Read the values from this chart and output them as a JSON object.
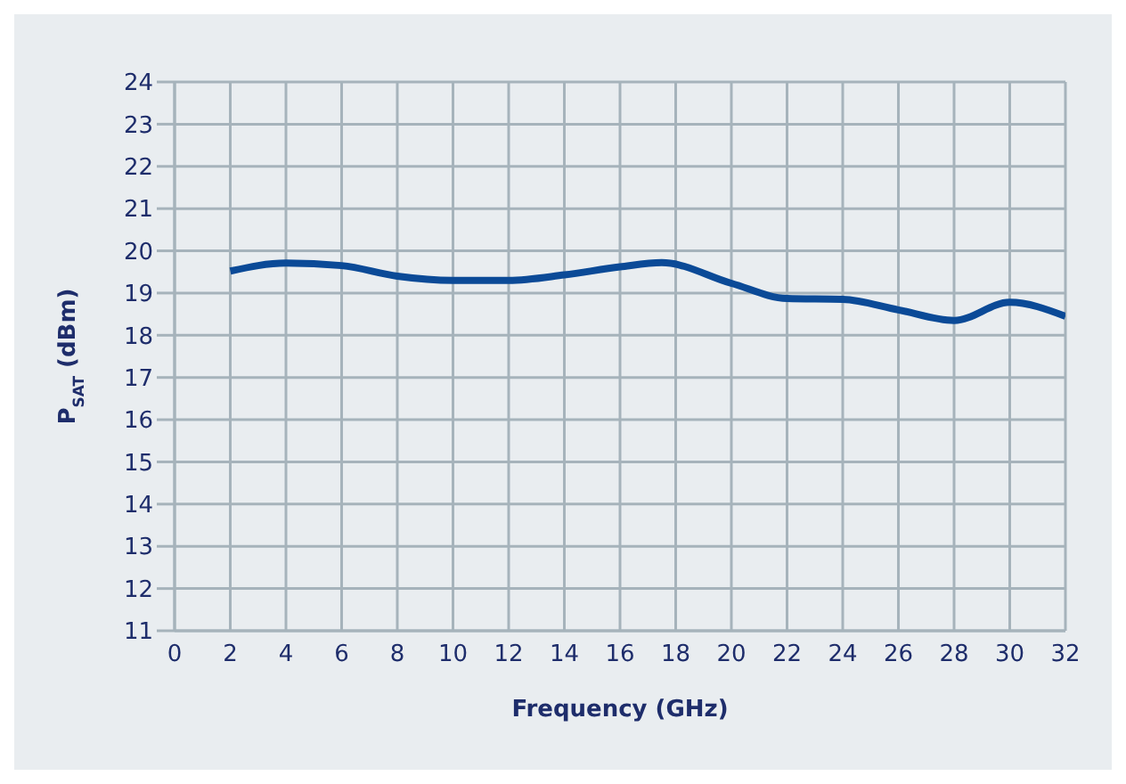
{
  "chart_data": {
    "type": "line",
    "xlabel": "Frequency (GHz)",
    "ylabel": "P$_{SAT}$ (dBm)",
    "x": [
      2,
      4,
      6,
      8,
      10,
      12,
      14,
      16,
      17.5,
      20,
      22,
      24,
      26,
      28,
      30,
      32
    ],
    "series": [
      {
        "color": "#0b4a97",
        "values": [
          19.52,
          19.71,
          19.65,
          19.4,
          19.3,
          19.3,
          19.43,
          19.62,
          19.72,
          19.23,
          18.87,
          18.85,
          18.6,
          18.35,
          18.78,
          18.45
        ]
      }
    ],
    "xlim": [
      0,
      32
    ],
    "xticks": [
      0,
      2,
      4,
      6,
      8,
      10,
      12,
      14,
      16,
      18,
      20,
      22,
      24,
      26,
      28,
      30,
      32
    ],
    "ylim": [
      11,
      24
    ],
    "yticks": [
      11,
      12,
      13,
      14,
      15,
      16,
      17,
      18,
      19,
      20,
      21,
      22,
      23,
      24
    ],
    "grid": true,
    "legend": false,
    "marker": "none",
    "line_style": "solid"
  }
}
